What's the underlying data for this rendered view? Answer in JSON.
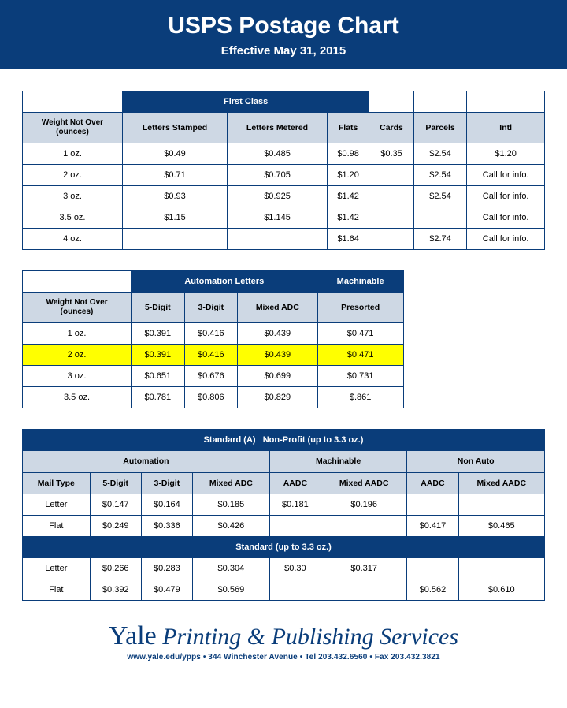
{
  "header": {
    "title": "USPS Postage Chart",
    "subtitle": "Effective May 31, 2015"
  },
  "colors": {
    "primary": "#0a3d7a",
    "header_gray": "#ced8e4",
    "highlight": "#ffff00",
    "background": "#ffffff"
  },
  "table1": {
    "group_header": "First Class",
    "weight_header_line1": "Weight Not Over",
    "weight_header_line2": "(ounces)",
    "columns": [
      "Letters Stamped",
      "Letters Metered",
      "Flats",
      "Cards",
      "Parcels",
      "Intl"
    ],
    "rows": [
      {
        "weight": "1 oz.",
        "cells": [
          "$0.49",
          "$0.485",
          "$0.98",
          "$0.35",
          "$2.54",
          "$1.20"
        ]
      },
      {
        "weight": "2 oz.",
        "cells": [
          "$0.71",
          "$0.705",
          "$1.20",
          "",
          "$2.54",
          "Call for info."
        ]
      },
      {
        "weight": "3 oz.",
        "cells": [
          "$0.93",
          "$0.925",
          "$1.42",
          "",
          "$2.54",
          "Call for info."
        ]
      },
      {
        "weight": "3.5 oz.",
        "cells": [
          "$1.15",
          "$1.145",
          "$1.42",
          "",
          "",
          "Call for info."
        ]
      },
      {
        "weight": "4 oz.",
        "cells": [
          "",
          "",
          "$1.64",
          "",
          "$2.74",
          "Call for info."
        ]
      }
    ]
  },
  "table2": {
    "group_auto": "Automation Letters",
    "group_mach": "Machinable",
    "weight_header_line1": "Weight Not Over",
    "weight_header_line2": "(ounces)",
    "columns": [
      "5-Digit",
      "3-Digit",
      "Mixed ADC",
      "Presorted"
    ],
    "rows": [
      {
        "weight": "1 oz.",
        "cells": [
          "$0.391",
          "$0.416",
          "$0.439",
          "$0.471"
        ],
        "highlight": false
      },
      {
        "weight": "2 oz.",
        "cells": [
          "$0.391",
          "$0.416",
          "$0.439",
          "$0.471"
        ],
        "highlight": true
      },
      {
        "weight": "3 oz.",
        "cells": [
          "$0.651",
          "$0.676",
          "$0.699",
          "$0.731"
        ],
        "highlight": false
      },
      {
        "weight": "3.5 oz.",
        "cells": [
          "$0.781",
          "$0.806",
          "$0.829",
          "$.861"
        ],
        "highlight": false
      }
    ]
  },
  "table3": {
    "title_np": "Standard (A)   Non-Profit (up to 3.3 oz.)",
    "title_std": "Standard (up to 3.3 oz.)",
    "group_auto": "Automation",
    "group_mach": "Machinable",
    "group_nonauto": "Non Auto",
    "col_mail": "Mail Type",
    "cols_auto": [
      "5-Digit",
      "3-Digit",
      "Mixed ADC"
    ],
    "cols_mach": [
      "AADC",
      "Mixed AADC"
    ],
    "cols_nonauto": [
      "AADC",
      "Mixed AADC"
    ],
    "np_rows": [
      {
        "type": "Letter",
        "cells": [
          "$0.147",
          "$0.164",
          "$0.185",
          "$0.181",
          "$0.196",
          "",
          ""
        ]
      },
      {
        "type": "Flat",
        "cells": [
          "$0.249",
          "$0.336",
          "$0.426",
          "",
          "",
          "$0.417",
          "$0.465"
        ]
      }
    ],
    "std_rows": [
      {
        "type": "Letter",
        "cells": [
          "$0.266",
          "$0.283",
          "$0.304",
          "$0.30",
          "$0.317",
          "",
          ""
        ]
      },
      {
        "type": "Flat",
        "cells": [
          "$0.392",
          "$0.479",
          "$0.569",
          "",
          "",
          "$0.562",
          "$0.610"
        ]
      }
    ]
  },
  "footer": {
    "brand_yale": "Yale",
    "brand_rest": " Printing & Publishing Services",
    "contact": "www.yale.edu/ypps • 344 Winchester Avenue • Tel 203.432.6560 • Fax 203.432.3821"
  }
}
